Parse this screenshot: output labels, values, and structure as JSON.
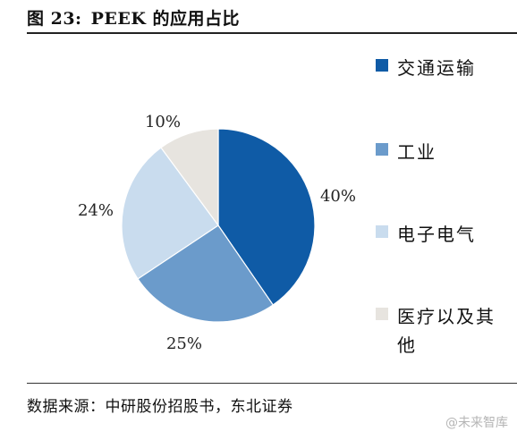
{
  "title": {
    "figure_label": "图 23:",
    "text": "PEEK 的应用占比"
  },
  "source": "数据来源：中研股份招股书，东北证券",
  "watermark": "@未来智库",
  "chart_data": {
    "type": "pie",
    "title": "PEEK 的应用占比",
    "categories": [
      "交通运输",
      "工业",
      "电子电气",
      "医疗以及其他"
    ],
    "values": [
      40,
      25,
      24,
      10
    ],
    "value_labels": [
      "40%",
      "25%",
      "24%",
      "10%"
    ],
    "colors": [
      "#0f5ba6",
      "#6b9bcb",
      "#c9dcee",
      "#e7e4df"
    ],
    "start_angle_deg": 0,
    "direction": "clockwise",
    "legend_placement": "right",
    "grid": false
  }
}
